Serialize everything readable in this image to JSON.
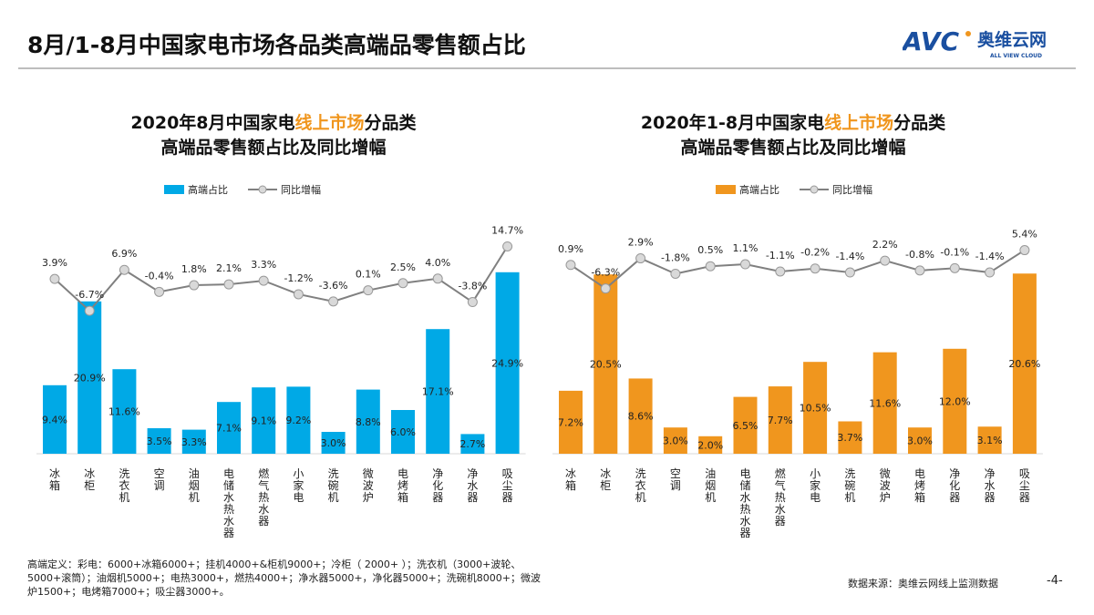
{
  "header": {
    "title": "8月/1-8月中国家电市场各品类高端品零售额占比"
  },
  "logo": {
    "mark": "AVC",
    "name": "奥维云网",
    "tagline": "ALL VIEW CLOUD",
    "colors": {
      "blue": "#1a4fa0",
      "orange": "#f0961e"
    }
  },
  "chart_data": [
    {
      "type": "bar+line",
      "title_lines": [
        [
          "2020年8月中国家电",
          "线上市场",
          "分品类"
        ],
        [
          "高端品零售额占比及同比增幅"
        ]
      ],
      "title_highlight_color": "#f0961e",
      "legend": {
        "bar": "高端占比",
        "line": "同比增幅",
        "placement": "top"
      },
      "bar_color": "#00a9e6",
      "line_color": "#808080",
      "categories": [
        "冰箱",
        "冰柜",
        "洗衣机",
        "空调",
        "油烟机",
        "电储水热水器",
        "燃气热水器",
        "小家电",
        "洗碗机",
        "微波炉",
        "电烤箱",
        "净化器",
        "净水器",
        "吸尘器"
      ],
      "bar_values": [
        9.4,
        20.9,
        11.6,
        3.5,
        3.3,
        7.1,
        9.1,
        9.2,
        3.0,
        8.8,
        6.0,
        17.1,
        2.7,
        24.9
      ],
      "bar_labels": [
        "9.4%",
        "20.9%",
        "11.6%",
        "3.5%",
        "3.3%",
        "7.1%",
        "9.1%",
        "9.2%",
        "3.0%",
        "8.8%",
        "6.0%",
        "17.1%",
        "2.7%",
        "24.9%"
      ],
      "line_values": [
        3.9,
        -6.7,
        6.9,
        -0.4,
        1.8,
        2.1,
        3.3,
        -1.2,
        -3.6,
        0.1,
        2.5,
        4.0,
        -3.8,
        14.7
      ],
      "line_labels": [
        "3.9%",
        "-6.7%",
        "6.9%",
        "-0.4%",
        "1.8%",
        "2.1%",
        "3.3%",
        "-1.2%",
        "-3.6%",
        "0.1%",
        "2.5%",
        "4.0%",
        "-3.8%",
        "14.7%"
      ]
    },
    {
      "type": "bar+line",
      "title_lines": [
        [
          "2020年1-8月中国家电",
          "线上市场",
          "分品类"
        ],
        [
          "高端品零售额占比及同比增幅"
        ]
      ],
      "title_highlight_color": "#f0961e",
      "legend": {
        "bar": "高端占比",
        "line": "同比增幅",
        "placement": "top"
      },
      "bar_color": "#f0961e",
      "line_color": "#808080",
      "categories": [
        "冰箱",
        "冰柜",
        "洗衣机",
        "空调",
        "油烟机",
        "电储水热水器",
        "燃气热水器",
        "小家电",
        "洗碗机",
        "微波炉",
        "电烤箱",
        "净化器",
        "净水器",
        "吸尘器"
      ],
      "bar_values": [
        7.2,
        20.5,
        8.6,
        3.0,
        2.0,
        6.5,
        7.7,
        10.5,
        3.7,
        11.6,
        3.0,
        12.0,
        3.1,
        20.6
      ],
      "bar_labels": [
        "7.2%",
        "20.5%",
        "8.6%",
        "3.0%",
        "2.0%",
        "6.5%",
        "7.7%",
        "10.5%",
        "3.7%",
        "11.6%",
        "3.0%",
        "12.0%",
        "3.1%",
        "20.6%"
      ],
      "line_values": [
        0.9,
        -6.3,
        2.9,
        -1.8,
        0.5,
        1.1,
        -1.1,
        -0.2,
        -1.4,
        2.2,
        -0.8,
        -0.1,
        -1.4,
        5.4
      ],
      "line_labels": [
        "0.9%",
        "-6.3%",
        "2.9%",
        "-1.8%",
        "0.5%",
        "1.1%",
        "-1.1%",
        "-0.2%",
        "-1.4%",
        "2.2%",
        "-0.8%",
        "-0.1%",
        "-1.4%",
        "5.4%"
      ]
    }
  ],
  "footer": {
    "definition": "高端定义：彩电：6000+冰箱6000+；挂机4000+&柜机9000+；冷柜（ 2000+ ）；洗衣机（3000+波轮、5000+滚筒）；油烟机5000+；电热3000+，燃热4000+；净水器5000+，净化器5000+；洗碗机8000+；微波炉1500+；电烤箱7000+；吸尘器3000+。",
    "source": "数据来源：奥维云网线上监测数据",
    "page": "-4-"
  }
}
